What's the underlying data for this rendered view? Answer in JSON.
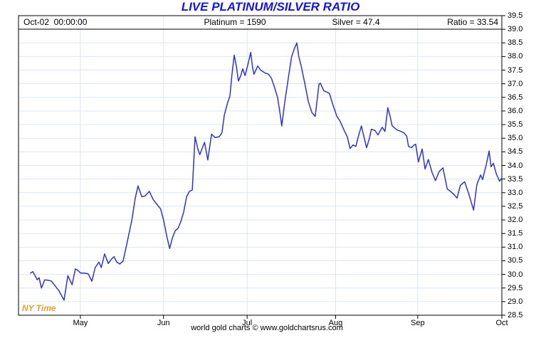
{
  "title": "LIVE PLATINUM/SILVER RATIO",
  "header": {
    "timestamp": "Oct-02  00:00:00",
    "platinum": "Platinum = 1590",
    "silver": "Silver = 47.4",
    "ratio": "Ratio = 33.54"
  },
  "ny_time_label": "NY Time",
  "footer": "world gold charts © www.goldchartsrus.com",
  "colors": {
    "title_blue": "#1515e8",
    "line_blue": "#3232cd",
    "grid_blue": "#dce6f2",
    "ny_time_orange": "#e8a030",
    "axis_black": "#000000",
    "background": "#ffffff"
  },
  "chart_data": {
    "type": "line",
    "title": "LIVE PLATINUM/SILVER RATIO",
    "ylim": [
      28.5,
      39.5
    ],
    "ytick_step": 0.5,
    "grid": true,
    "legend": "none",
    "ytick_labels": [
      "39.5",
      "39.0",
      "38.5",
      "38.0",
      "37.5",
      "37.0",
      "36.5",
      "36.0",
      "35.5",
      "35.0",
      "34.5",
      "34.0",
      "33.5",
      "33.0",
      "32.5",
      "32.0",
      "31.5",
      "31.0",
      "30.5",
      "30.0",
      "29.5",
      "29.0",
      "28.5"
    ],
    "xticks": [
      {
        "label": "May",
        "t": 0.128
      },
      {
        "label": "Jun",
        "t": 0.3
      },
      {
        "label": "Jul",
        "t": 0.473
      },
      {
        "label": "Aug",
        "t": 0.656
      },
      {
        "label": "Sep",
        "t": 0.826
      },
      {
        "label": "Oct",
        "t": 1.0
      }
    ],
    "series": [
      {
        "name": "Platinum/Silver Ratio",
        "points": [
          [
            0.0,
            30.05
          ],
          [
            0.005,
            30.1
          ],
          [
            0.014,
            29.8
          ],
          [
            0.018,
            29.88
          ],
          [
            0.023,
            29.5
          ],
          [
            0.03,
            29.8
          ],
          [
            0.038,
            29.78
          ],
          [
            0.044,
            29.76
          ],
          [
            0.051,
            29.6
          ],
          [
            0.06,
            29.4
          ],
          [
            0.071,
            29.05
          ],
          [
            0.079,
            29.95
          ],
          [
            0.088,
            29.62
          ],
          [
            0.095,
            30.2
          ],
          [
            0.1,
            30.15
          ],
          [
            0.106,
            30.05
          ],
          [
            0.113,
            30.05
          ],
          [
            0.122,
            30.02
          ],
          [
            0.13,
            29.75
          ],
          [
            0.137,
            30.25
          ],
          [
            0.145,
            30.45
          ],
          [
            0.15,
            30.25
          ],
          [
            0.157,
            30.75
          ],
          [
            0.165,
            30.4
          ],
          [
            0.171,
            30.55
          ],
          [
            0.177,
            30.65
          ],
          [
            0.183,
            30.45
          ],
          [
            0.189,
            30.38
          ],
          [
            0.196,
            30.48
          ],
          [
            0.204,
            31.1
          ],
          [
            0.215,
            32.0
          ],
          [
            0.222,
            32.8
          ],
          [
            0.228,
            33.25
          ],
          [
            0.236,
            32.85
          ],
          [
            0.243,
            32.88
          ],
          [
            0.252,
            33.05
          ],
          [
            0.26,
            32.75
          ],
          [
            0.269,
            32.55
          ],
          [
            0.276,
            32.4
          ],
          [
            0.282,
            32.0
          ],
          [
            0.289,
            31.4
          ],
          [
            0.295,
            30.95
          ],
          [
            0.301,
            31.35
          ],
          [
            0.307,
            31.6
          ],
          [
            0.313,
            31.7
          ],
          [
            0.319,
            31.95
          ],
          [
            0.325,
            32.3
          ],
          [
            0.331,
            32.85
          ],
          [
            0.337,
            33.05
          ],
          [
            0.343,
            33.1
          ],
          [
            0.349,
            35.05
          ],
          [
            0.355,
            34.6
          ],
          [
            0.359,
            34.4
          ],
          [
            0.369,
            34.85
          ],
          [
            0.376,
            34.2
          ],
          [
            0.384,
            35.15
          ],
          [
            0.391,
            35.03
          ],
          [
            0.4,
            35.05
          ],
          [
            0.406,
            35.2
          ],
          [
            0.411,
            35.85
          ],
          [
            0.418,
            36.3
          ],
          [
            0.423,
            36.55
          ],
          [
            0.427,
            37.3
          ],
          [
            0.432,
            38.05
          ],
          [
            0.437,
            37.6
          ],
          [
            0.441,
            37.1
          ],
          [
            0.446,
            37.3
          ],
          [
            0.45,
            37.55
          ],
          [
            0.455,
            37.3
          ],
          [
            0.461,
            37.7
          ],
          [
            0.467,
            38.15
          ],
          [
            0.471,
            37.6
          ],
          [
            0.474,
            37.35
          ],
          [
            0.482,
            37.65
          ],
          [
            0.488,
            37.5
          ],
          [
            0.497,
            37.4
          ],
          [
            0.505,
            37.35
          ],
          [
            0.511,
            37.2
          ],
          [
            0.518,
            36.85
          ],
          [
            0.524,
            36.5
          ],
          [
            0.529,
            35.95
          ],
          [
            0.533,
            35.45
          ],
          [
            0.539,
            36.28
          ],
          [
            0.547,
            37.22
          ],
          [
            0.554,
            38.0
          ],
          [
            0.56,
            38.3
          ],
          [
            0.565,
            38.5
          ],
          [
            0.569,
            38.0
          ],
          [
            0.574,
            37.66
          ],
          [
            0.582,
            37.0
          ],
          [
            0.589,
            36.37
          ],
          [
            0.597,
            35.94
          ],
          [
            0.604,
            35.8
          ],
          [
            0.612,
            36.98
          ],
          [
            0.615,
            37.02
          ],
          [
            0.622,
            36.74
          ],
          [
            0.628,
            36.7
          ],
          [
            0.634,
            36.65
          ],
          [
            0.642,
            36.2
          ],
          [
            0.65,
            35.8
          ],
          [
            0.657,
            35.62
          ],
          [
            0.665,
            35.3
          ],
          [
            0.672,
            35.05
          ],
          [
            0.678,
            34.62
          ],
          [
            0.684,
            34.75
          ],
          [
            0.69,
            34.7
          ],
          [
            0.696,
            35.1
          ],
          [
            0.702,
            35.45
          ],
          [
            0.708,
            35.0
          ],
          [
            0.713,
            34.65
          ],
          [
            0.719,
            35.0
          ],
          [
            0.723,
            35.33
          ],
          [
            0.731,
            35.28
          ],
          [
            0.737,
            35.12
          ],
          [
            0.746,
            35.4
          ],
          [
            0.752,
            35.25
          ],
          [
            0.758,
            36.12
          ],
          [
            0.763,
            35.8
          ],
          [
            0.767,
            35.46
          ],
          [
            0.772,
            35.38
          ],
          [
            0.778,
            35.3
          ],
          [
            0.786,
            35.25
          ],
          [
            0.792,
            35.2
          ],
          [
            0.798,
            35.08
          ],
          [
            0.802,
            34.7
          ],
          [
            0.808,
            34.65
          ],
          [
            0.813,
            34.74
          ],
          [
            0.817,
            34.78
          ],
          [
            0.823,
            34.13
          ],
          [
            0.831,
            34.6
          ],
          [
            0.837,
            33.87
          ],
          [
            0.844,
            34.22
          ],
          [
            0.852,
            33.74
          ],
          [
            0.859,
            33.44
          ],
          [
            0.867,
            33.78
          ],
          [
            0.875,
            33.91
          ],
          [
            0.884,
            33.14
          ],
          [
            0.891,
            33.05
          ],
          [
            0.899,
            32.92
          ],
          [
            0.905,
            32.8
          ],
          [
            0.912,
            33.27
          ],
          [
            0.921,
            33.4
          ],
          [
            0.929,
            33.0
          ],
          [
            0.94,
            32.36
          ],
          [
            0.947,
            33.3
          ],
          [
            0.955,
            33.65
          ],
          [
            0.959,
            33.48
          ],
          [
            0.967,
            34.04
          ],
          [
            0.973,
            34.53
          ],
          [
            0.977,
            33.95
          ],
          [
            0.982,
            34.08
          ],
          [
            0.988,
            33.7
          ],
          [
            0.995,
            33.42
          ],
          [
            1.0,
            33.54
          ]
        ]
      }
    ]
  }
}
